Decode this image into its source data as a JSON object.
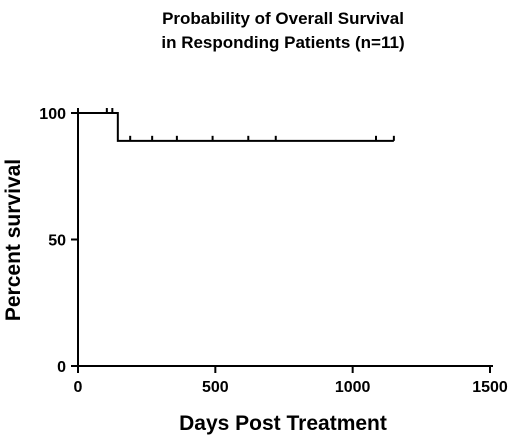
{
  "chart_data": {
    "type": "line",
    "title_lines": [
      "Probability of Overall Survival",
      "in Responding Patients (n=11)"
    ],
    "xlabel": "Days Post Treatment",
    "ylabel": "Percent survival",
    "xlim": [
      0,
      1500
    ],
    "ylim": [
      0,
      100
    ],
    "x_ticks": [
      0,
      500,
      1000,
      1500
    ],
    "y_ticks": [
      0,
      50,
      100
    ],
    "x_tick_labels": [
      "0",
      "500",
      "1000",
      "1500"
    ],
    "y_tick_labels": [
      "0",
      "50",
      "100"
    ],
    "grid": false,
    "series": [
      {
        "step_points": [
          [
            0,
            100
          ],
          [
            145,
            100
          ],
          [
            145,
            89
          ],
          [
            1150,
            89
          ]
        ],
        "censor_marks": [
          [
            105,
            100
          ],
          [
            125,
            100
          ],
          [
            190,
            89
          ],
          [
            270,
            89
          ],
          [
            360,
            89
          ],
          [
            490,
            89
          ],
          [
            620,
            89
          ],
          [
            720,
            89
          ],
          [
            1085,
            89
          ],
          [
            1150,
            89
          ]
        ]
      }
    ]
  }
}
